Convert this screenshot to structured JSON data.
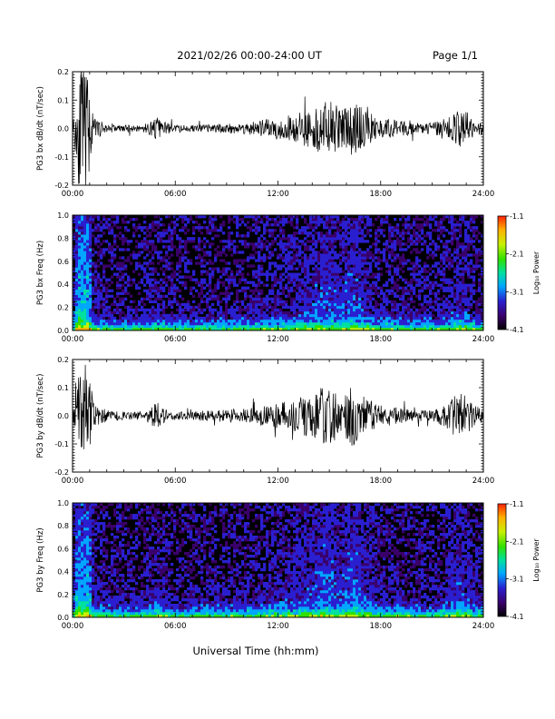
{
  "header": {
    "title": "2021/02/26  00:00-24:00 UT",
    "page": "Page 1/1"
  },
  "footer": {
    "xlabel": "Universal Time (hh:mm)"
  },
  "colors": {
    "trace": "#000000",
    "background": "#ffffff",
    "colormap": [
      "#000000",
      "#3a006a",
      "#2a1fd0",
      "#00a6ff",
      "#00e0a0",
      "#30e000",
      "#c8f000",
      "#ffb000",
      "#ff2000"
    ]
  },
  "chart_data": [
    {
      "type": "line",
      "id": "bx-time-series",
      "ylabel": "PG3 bx dB/dt (nT/sec)",
      "xlim": [
        0,
        24
      ],
      "ylim": [
        -0.2,
        0.2
      ],
      "x_ticks": [
        "00:00",
        "06:00",
        "12:00",
        "18:00",
        "24:00"
      ],
      "y_ticks": [
        "0.2",
        "0.1",
        "0.0",
        "-0.1",
        "-0.2"
      ],
      "y_tick_values": [
        0.2,
        0.1,
        0.0,
        -0.1,
        -0.2
      ],
      "envelope": {
        "x_hours": [
          0,
          0.3,
          0.6,
          0.9,
          1.2,
          2,
          3,
          4,
          4.5,
          5,
          5.3,
          6,
          8,
          10,
          11,
          12,
          13,
          14,
          14.5,
          15,
          15.5,
          16,
          16.5,
          17,
          17.5,
          18,
          19,
          20,
          21,
          22,
          22.5,
          23,
          23.5,
          24
        ],
        "amplitude": [
          0.01,
          0.2,
          0.2,
          0.2,
          0.04,
          0.015,
          0.012,
          0.012,
          0.025,
          0.04,
          0.025,
          0.012,
          0.015,
          0.02,
          0.03,
          0.04,
          0.05,
          0.07,
          0.09,
          0.1,
          0.08,
          0.09,
          0.1,
          0.07,
          0.05,
          0.04,
          0.03,
          0.02,
          0.02,
          0.04,
          0.07,
          0.06,
          0.03,
          0.02
        ]
      }
    },
    {
      "type": "heatmap",
      "id": "bx-spectrogram",
      "ylabel": "PG3 bx Freq (Hz)",
      "xlim": [
        0,
        24
      ],
      "ylim": [
        0,
        1.0
      ],
      "x_ticks": [
        "00:00",
        "06:00",
        "12:00",
        "18:00",
        "24:00"
      ],
      "y_ticks": [
        "1.0",
        "0.8",
        "0.6",
        "0.4",
        "0.2",
        "0.0"
      ],
      "colorbar": {
        "label": "Log₁₀ Power",
        "min": -4.1,
        "max": -1.1,
        "ticks": [
          "-1.1",
          "-2.1",
          "-3.1",
          "-4.1"
        ]
      }
    },
    {
      "type": "line",
      "id": "by-time-series",
      "ylabel": "PG3 by dB/dt (nT/sec)",
      "xlim": [
        0,
        24
      ],
      "ylim": [
        -0.2,
        0.2
      ],
      "x_ticks": [
        "00:00",
        "06:00",
        "12:00",
        "18:00",
        "24:00"
      ],
      "y_ticks": [
        "0.2",
        "0.1",
        "0.0",
        "-0.1",
        "-0.2"
      ],
      "y_tick_values": [
        0.2,
        0.1,
        0.0,
        -0.1,
        -0.2
      ],
      "envelope": {
        "x_hours": [
          0,
          0.3,
          0.6,
          0.9,
          1.2,
          2,
          3,
          4,
          4.5,
          5,
          5.3,
          6,
          8,
          10,
          11,
          12,
          13,
          14,
          14.5,
          15,
          15.5,
          16,
          16.5,
          17,
          17.5,
          18,
          19,
          20,
          21,
          22,
          22.5,
          23,
          23.5,
          24
        ],
        "amplitude": [
          0.01,
          0.2,
          0.15,
          0.2,
          0.05,
          0.02,
          0.015,
          0.015,
          0.03,
          0.05,
          0.03,
          0.015,
          0.02,
          0.025,
          0.035,
          0.045,
          0.06,
          0.08,
          0.1,
          0.11,
          0.08,
          0.1,
          0.11,
          0.07,
          0.05,
          0.04,
          0.03,
          0.02,
          0.02,
          0.05,
          0.09,
          0.07,
          0.04,
          0.02
        ]
      }
    },
    {
      "type": "heatmap",
      "id": "by-spectrogram",
      "ylabel": "PG3 by Freq (Hz)",
      "xlim": [
        0,
        24
      ],
      "ylim": [
        0,
        1.0
      ],
      "x_ticks": [
        "00:00",
        "06:00",
        "12:00",
        "18:00",
        "24:00"
      ],
      "y_ticks": [
        "1.0",
        "0.8",
        "0.6",
        "0.4",
        "0.2",
        "0.0"
      ],
      "colorbar": {
        "label": "Log₁₀ Power",
        "min": -4.1,
        "max": -1.1,
        "ticks": [
          "-1.1",
          "-2.1",
          "-3.1",
          "-4.1"
        ]
      }
    }
  ]
}
